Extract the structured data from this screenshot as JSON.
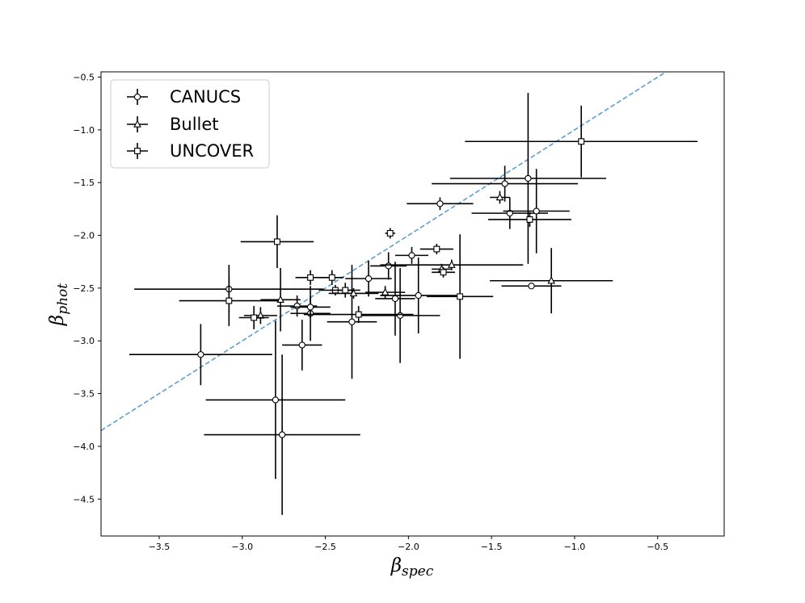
{
  "chart_data": {
    "type": "scatter",
    "xlabel": {
      "base": "β",
      "sub": "spec"
    },
    "ylabel": {
      "base": "β",
      "sub": "phot"
    },
    "xlim": [
      -3.85,
      -0.1
    ],
    "ylim": [
      -4.85,
      -0.45
    ],
    "xticks": [
      -3.5,
      -3.0,
      -2.5,
      -2.0,
      -1.5,
      -1.0,
      -0.5
    ],
    "yticks": [
      -0.5,
      -1.0,
      -1.5,
      -2.0,
      -2.5,
      -3.0,
      -3.5,
      -4.0,
      -4.5
    ],
    "xtick_labels": [
      "−3.5",
      "−3.0",
      "−2.5",
      "−2.0",
      "−1.5",
      "−1.0",
      "−0.5"
    ],
    "ytick_labels": [
      "−0.5",
      "−1.0",
      "−1.5",
      "−2.0",
      "−2.5",
      "−3.0",
      "−3.5",
      "−4.0",
      "−4.5"
    ],
    "grid": false,
    "legend_position": "upper-left",
    "reference_line": {
      "style": "dashed",
      "color": "#5a9fd4",
      "slope": 1,
      "intercept": 0
    },
    "series": [
      {
        "name": "CANUCS",
        "marker": "circle",
        "points": [
          {
            "x": -3.25,
            "y": -3.13,
            "xerr": 0.43,
            "yerr": 0.29
          },
          {
            "x": -3.08,
            "y": -2.51,
            "xerr": 0.57,
            "yerr": 0.23
          },
          {
            "x": -2.8,
            "y": -3.56,
            "xerr": 0.42,
            "yerr": 0.75
          },
          {
            "x": -2.76,
            "y": -3.89,
            "xerr": 0.47,
            "yerr": 0.76
          },
          {
            "x": -2.67,
            "y": -2.67,
            "xerr": 0.12,
            "yerr": 0.1
          },
          {
            "x": -2.64,
            "y": -3.04,
            "xerr": 0.12,
            "yerr": 0.24
          },
          {
            "x": -2.59,
            "y": -2.74,
            "xerr": 0.12,
            "yerr": 0.26
          },
          {
            "x": -2.59,
            "y": -2.68,
            "xerr": 0.12,
            "yerr": 0.1
          },
          {
            "x": -2.34,
            "y": -2.82,
            "xerr": 0.15,
            "yerr": 0.54
          },
          {
            "x": -2.24,
            "y": -2.41,
            "xerr": 0.14,
            "yerr": 0.17
          },
          {
            "x": -2.12,
            "y": -2.29,
            "xerr": 0.11,
            "yerr": 0.13
          },
          {
            "x": -2.08,
            "y": -2.6,
            "xerr": 0.12,
            "yerr": 0.35
          },
          {
            "x": -2.05,
            "y": -2.76,
            "xerr": 0.24,
            "yerr": 0.45
          },
          {
            "x": -1.98,
            "y": -2.19,
            "xerr": 0.1,
            "yerr": 0.08
          },
          {
            "x": -1.94,
            "y": -2.57,
            "xerr": 0.23,
            "yerr": 0.36
          },
          {
            "x": -1.81,
            "y": -1.7,
            "xerr": 0.2,
            "yerr": 0.06
          },
          {
            "x": -1.42,
            "y": -1.51,
            "xerr": 0.44,
            "yerr": 0.17
          },
          {
            "x": -1.39,
            "y": -1.79,
            "xerr": 0.23,
            "yerr": 0.15
          },
          {
            "x": -1.28,
            "y": -1.46,
            "xerr": 0.47,
            "yerr": 0.81
          },
          {
            "x": -1.26,
            "y": -2.48,
            "xerr": 0.18,
            "yerr": 0.02
          },
          {
            "x": -1.23,
            "y": -1.77,
            "xerr": 0.2,
            "yerr": 0.4
          }
        ]
      },
      {
        "name": "Bullet",
        "marker": "triangle",
        "points": [
          {
            "x": -2.89,
            "y": -2.76,
            "xerr": 0.1,
            "yerr": 0.08
          },
          {
            "x": -2.77,
            "y": -2.61,
            "xerr": 0.12,
            "yerr": 0.3
          },
          {
            "x": -2.33,
            "y": -2.55,
            "xerr": 0.15,
            "yerr": 0.05
          },
          {
            "x": -2.14,
            "y": -2.54,
            "xerr": 0.12,
            "yerr": 0.06
          },
          {
            "x": -1.8,
            "y": -2.32,
            "xerr": 0.06,
            "yerr": 0.05
          },
          {
            "x": -1.74,
            "y": -2.28,
            "xerr": 0.43,
            "yerr": 0.05
          },
          {
            "x": -1.45,
            "y": -1.64,
            "xerr": 0.06,
            "yerr": 0.06
          },
          {
            "x": -1.14,
            "y": -2.43,
            "xerr": 0.37,
            "yerr": 0.31
          }
        ]
      },
      {
        "name": "UNCOVER",
        "marker": "square",
        "points": [
          {
            "x": -3.08,
            "y": -2.62,
            "xerr": 0.3,
            "yerr": 0.24
          },
          {
            "x": -2.93,
            "y": -2.78,
            "xerr": 0.09,
            "yerr": 0.11
          },
          {
            "x": -2.79,
            "y": -2.06,
            "xerr": 0.22,
            "yerr": 0.25
          },
          {
            "x": -2.59,
            "y": -2.4,
            "xerr": 0.09,
            "yerr": 0.07
          },
          {
            "x": -2.46,
            "y": -2.4,
            "xerr": 0.07,
            "yerr": 0.07
          },
          {
            "x": -2.44,
            "y": -2.52,
            "xerr": 0.1,
            "yerr": 0.05
          },
          {
            "x": -2.38,
            "y": -2.52,
            "xerr": 0.09,
            "yerr": 0.07
          },
          {
            "x": -2.3,
            "y": -2.75,
            "xerr": 0.33,
            "yerr": 0.08
          },
          {
            "x": -2.11,
            "y": -1.98,
            "xerr": 0.03,
            "yerr": 0.05
          },
          {
            "x": -1.83,
            "y": -2.13,
            "xerr": 0.1,
            "yerr": 0.05
          },
          {
            "x": -1.79,
            "y": -2.35,
            "xerr": 0.07,
            "yerr": 0.05
          },
          {
            "x": -1.69,
            "y": -2.58,
            "xerr": 0.2,
            "yerr": 0.59
          },
          {
            "x": -1.27,
            "y": -1.85,
            "xerr": 0.25,
            "yerr": 0.07
          },
          {
            "x": -0.96,
            "y": -1.11,
            "xerr": 0.7,
            "yerr": 0.34
          }
        ]
      }
    ]
  }
}
